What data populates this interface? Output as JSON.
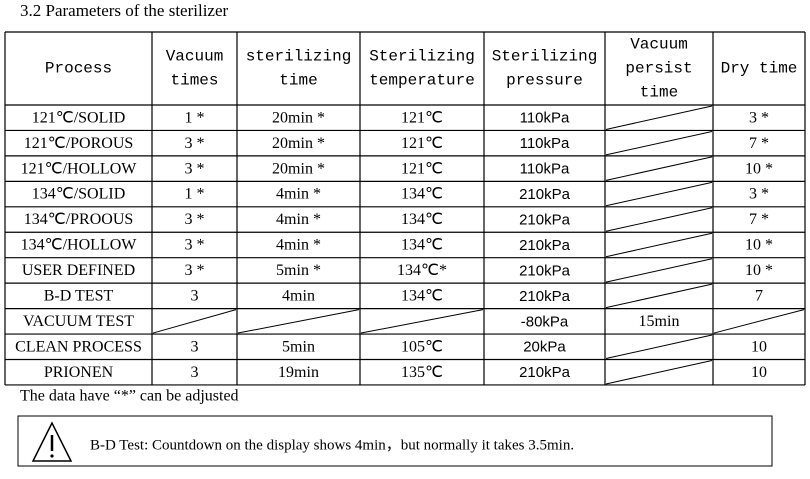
{
  "heading": "3.2 Parameters of the sterilizer",
  "table": {
    "header": [
      [
        "Process"
      ],
      [
        "Vacuum",
        "times"
      ],
      [
        "sterilizing",
        "time"
      ],
      [
        "Sterilizing",
        "temperature"
      ],
      [
        "Sterilizing",
        "pressure"
      ],
      [
        "Vacuum",
        "persist",
        "time"
      ],
      [
        "Dry time"
      ]
    ],
    "rows": [
      [
        "121℃/SOLID",
        "1 *",
        "20min *",
        "121℃",
        "110kPa",
        null,
        "3 *"
      ],
      [
        "121℃/POROUS",
        "3 *",
        "20min *",
        "121℃",
        "110kPa",
        null,
        "7 *"
      ],
      [
        "121℃/HOLLOW",
        "3 *",
        "20min *",
        "121℃",
        "110kPa",
        null,
        "10 *"
      ],
      [
        "134℃/SOLID",
        "1 *",
        "4min *",
        "134℃",
        "210kPa",
        null,
        "3 *"
      ],
      [
        "134℃/PROOUS",
        "3 *",
        "4min *",
        "134℃",
        "210kPa",
        null,
        "7 *"
      ],
      [
        "134℃/HOLLOW",
        "3 *",
        "4min *",
        "134℃",
        "210kPa",
        null,
        "10 *"
      ],
      [
        "USER DEFINED",
        "3 *",
        "5min *",
        "134℃*",
        "210kPa",
        null,
        "10 *"
      ],
      [
        "B-D TEST",
        "3",
        "4min",
        "134℃",
        "210kPa",
        null,
        "7"
      ],
      [
        "VACUUM TEST",
        null,
        null,
        null,
        "-80kPa",
        "15min",
        null
      ],
      [
        "CLEAN PROCESS",
        "3",
        "5min",
        "105℃",
        "20kPa",
        null,
        "10"
      ],
      [
        "PRIONEN",
        "3",
        "19min",
        "135℃",
        "210kPa",
        null,
        "10"
      ]
    ]
  },
  "note": "The data have “*” can be adjusted",
  "warning": "B-D Test: Countdown on the display shows 4min，but normally it takes 3.5min."
}
